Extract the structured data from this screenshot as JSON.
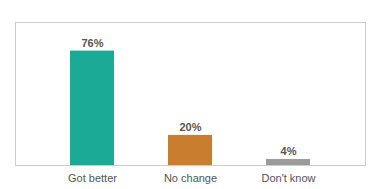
{
  "chart_data": {
    "type": "bar",
    "categories": [
      "Got better",
      "No change",
      "Don't know"
    ],
    "values": [
      76,
      20,
      4
    ],
    "value_labels": [
      "76%",
      "20%",
      "4%"
    ],
    "colors": [
      "#1aaa96",
      "#c87d2f",
      "#9b9b9b"
    ],
    "ylim": [
      0,
      95
    ],
    "tick_labels": "x",
    "data_labels": true
  }
}
